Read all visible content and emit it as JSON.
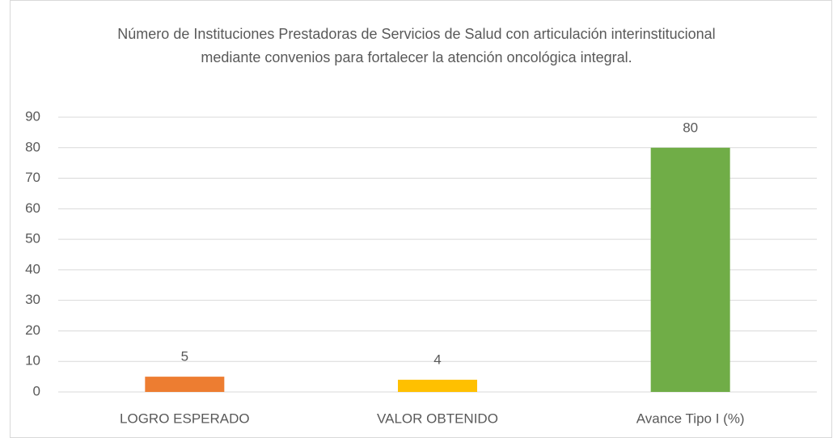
{
  "chart_data": {
    "type": "bar",
    "title": "Número de Instituciones Prestadoras de Servicios de Salud con articulación interinstitucional mediante convenios para fortalecer la atención oncológica integral.",
    "categories": [
      "LOGRO ESPERADO",
      "VALOR OBTENIDO",
      "Avance Tipo I (%)"
    ],
    "values": [
      5,
      4,
      80
    ],
    "colors": [
      "#ed7d31",
      "#ffc000",
      "#70ad47"
    ],
    "ylim": [
      0,
      90
    ],
    "yticks": [
      0,
      10,
      20,
      30,
      40,
      50,
      60,
      70,
      80,
      90
    ],
    "grid": true
  }
}
